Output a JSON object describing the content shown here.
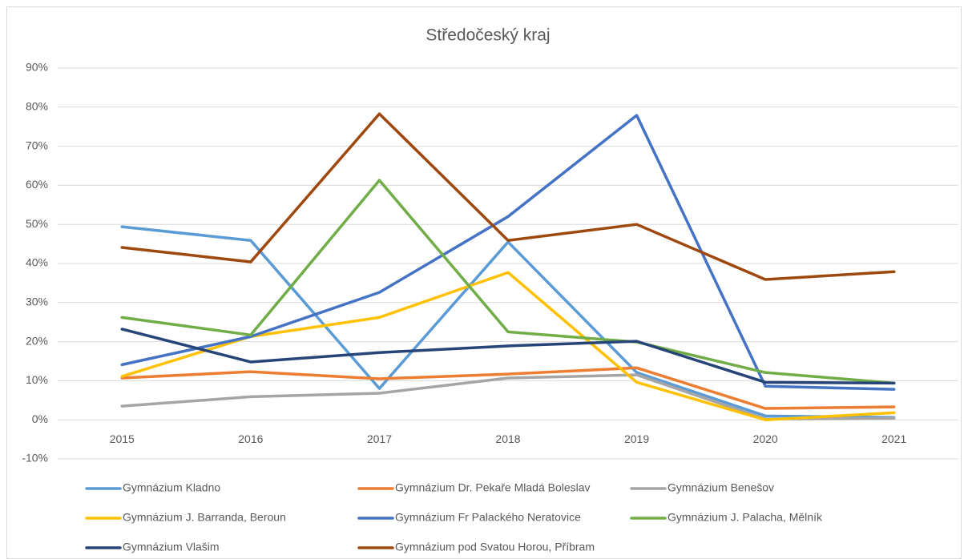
{
  "chart_data": {
    "type": "line",
    "title": "Středočeský kraj",
    "categories": [
      "2015",
      "2016",
      "2017",
      "2018",
      "2019",
      "2020",
      "2021"
    ],
    "ylim": [
      -10,
      90
    ],
    "yticks": [
      {
        "value": -10,
        "label": "-10%"
      },
      {
        "value": 0,
        "label": "0%"
      },
      {
        "value": 10,
        "label": "10%"
      },
      {
        "value": 20,
        "label": "20%"
      },
      {
        "value": 30,
        "label": "30%"
      },
      {
        "value": 40,
        "label": "40%"
      },
      {
        "value": 50,
        "label": "50%"
      },
      {
        "value": 60,
        "label": "60%"
      },
      {
        "value": 70,
        "label": "70%"
      },
      {
        "value": 80,
        "label": "80%"
      },
      {
        "value": 90,
        "label": "90%"
      }
    ],
    "grid": true,
    "legend": "bottom",
    "series": [
      {
        "name": "Gymnázium Kladno",
        "color": "#5b9bd5",
        "values": [
          49.4,
          45.9,
          8.0,
          45.5,
          12.1,
          1.0,
          0.6
        ]
      },
      {
        "name": "Gymnázium Dr. Pekaře Mladá Boleslav",
        "color": "#ed7d31",
        "values": [
          10.7,
          12.3,
          10.5,
          11.7,
          13.3,
          2.9,
          3.3
        ]
      },
      {
        "name": "Gymnázium Benešov",
        "color": "#a5a5a5",
        "values": [
          3.5,
          5.9,
          6.8,
          10.7,
          11.5,
          0.2,
          0.4
        ]
      },
      {
        "name": "Gymnázium J. Barranda, Beroun",
        "color": "#ffc000",
        "values": [
          11.1,
          21.3,
          26.2,
          37.7,
          9.6,
          0,
          1.8
        ]
      },
      {
        "name": "Gymnázium Fr Palackého Neratovice",
        "color": "#4472c4",
        "values": [
          14.1,
          21.3,
          32.6,
          52.0,
          77.9,
          8.6,
          7.8
        ]
      },
      {
        "name": "Gymnázium J. Palacha, Mělník",
        "color": "#70ad47",
        "values": [
          26.2,
          21.7,
          61.3,
          22.5,
          19.9,
          12.1,
          9.4
        ]
      },
      {
        "name": "Gymnázium Vlašim",
        "color": "#264478",
        "values": [
          23.2,
          14.8,
          17.2,
          18.9,
          20.1,
          9.6,
          9.4
        ]
      },
      {
        "name": "Gymnázium pod Svatou Horou, Příbram",
        "color": "#9e480e",
        "values": [
          44.1,
          40.4,
          78.3,
          45.9,
          50.0,
          35.9,
          37.9
        ]
      }
    ]
  }
}
